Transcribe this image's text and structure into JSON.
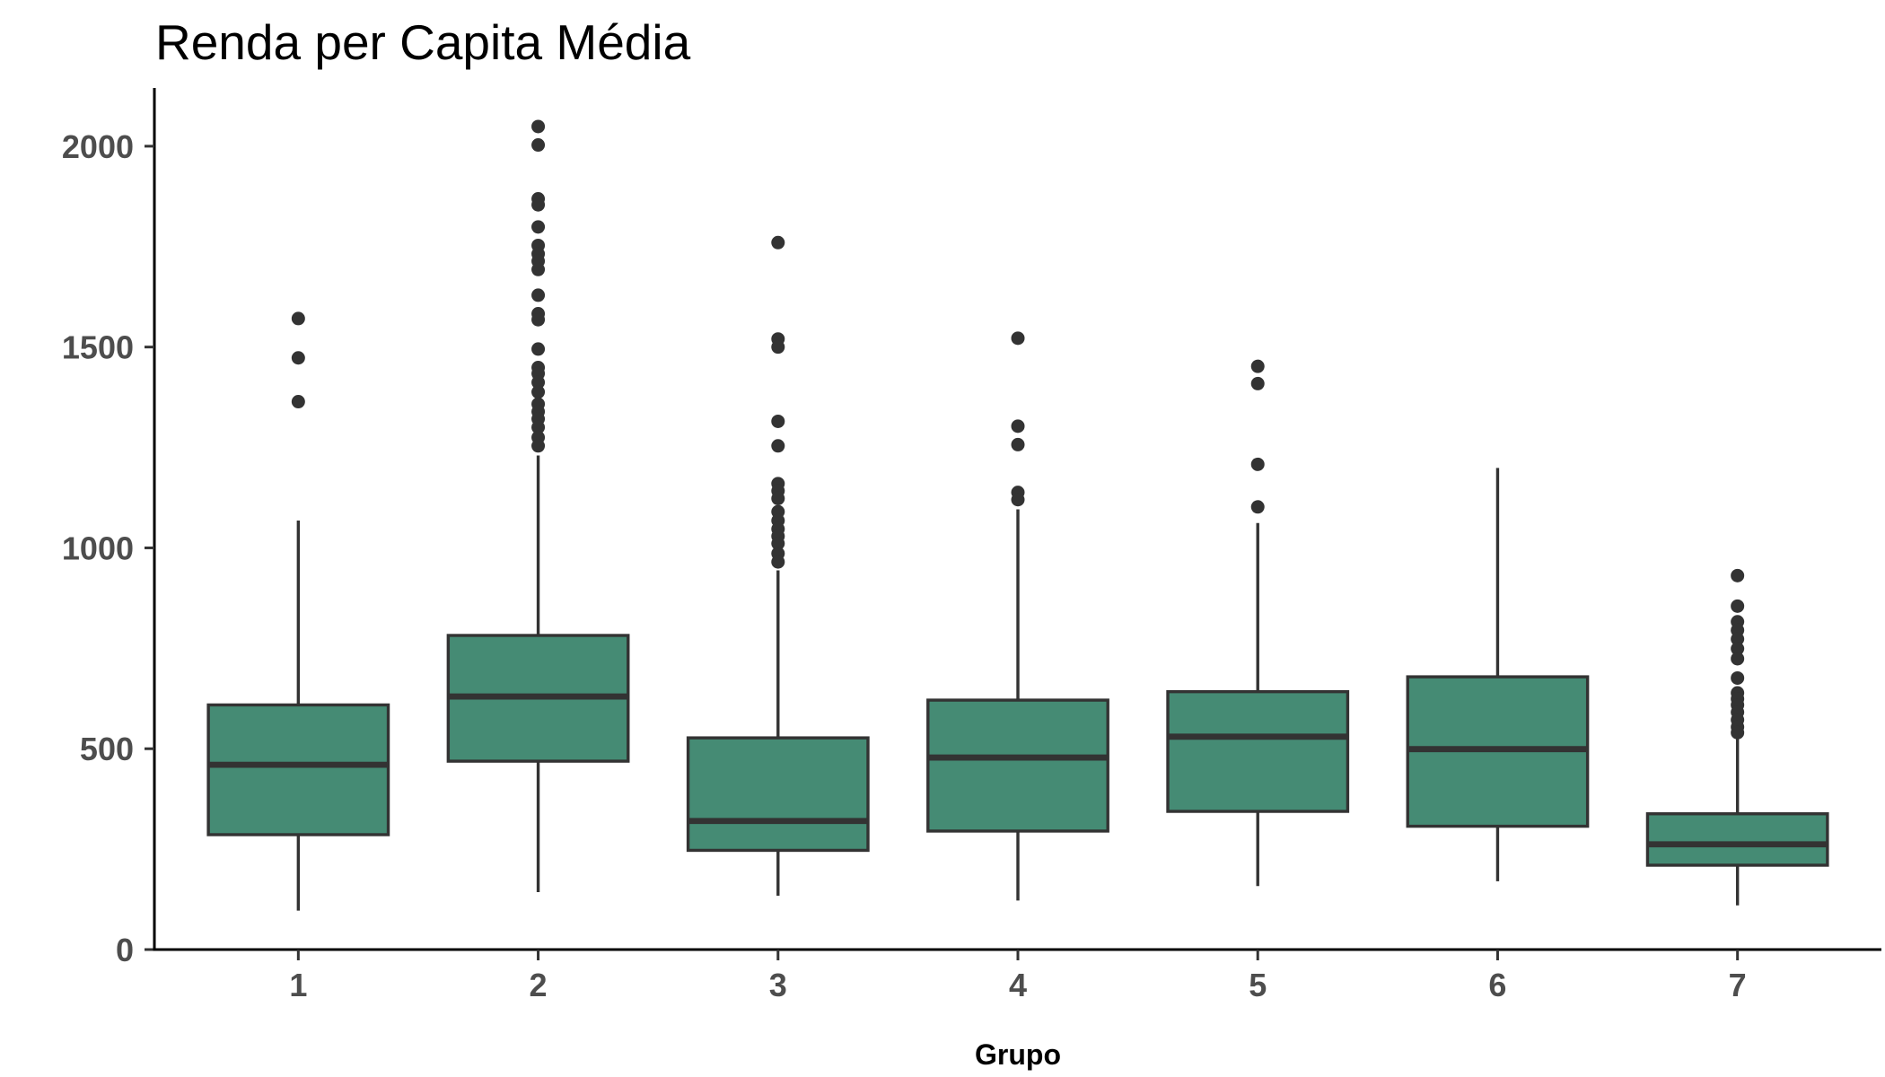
{
  "chart_data": {
    "type": "boxplot",
    "title": "Renda per Capita Média",
    "xlabel": "Grupo",
    "categories": [
      "1",
      "2",
      "3",
      "4",
      "5",
      "6",
      "7"
    ],
    "y_ticks": [
      0,
      500,
      1000,
      1500,
      2000
    ],
    "ylim": [
      0,
      2145
    ],
    "grid": false,
    "colors": {
      "box_fill": "#458B74",
      "box_line": "#333333",
      "outlier": "#333333",
      "axis_line": "#000000",
      "tick_mark": "#333333",
      "axis_text": "#4D4D4D",
      "title": "#000000"
    },
    "boxes": [
      {
        "whisker_low": 97,
        "q1": 286,
        "median": 460,
        "q3": 609,
        "whisker_high": 1068,
        "outliers": [
          1571,
          1473,
          1364
        ]
      },
      {
        "whisker_low": 143,
        "q1": 469,
        "median": 630,
        "q3": 782,
        "whisker_high": 1230,
        "outliers": [
          2049,
          2003,
          1869,
          1854,
          1799,
          1753,
          1732,
          1714,
          1693,
          1629,
          1583,
          1568,
          1495,
          1449,
          1434,
          1412,
          1388,
          1358,
          1339,
          1321,
          1300,
          1275,
          1254
        ]
      },
      {
        "whisker_low": 134,
        "q1": 247,
        "median": 320,
        "q3": 527,
        "whisker_high": 944,
        "outliers": [
          1760,
          1520,
          1500,
          1315,
          1254,
          1160,
          1142,
          1123,
          1090,
          1068,
          1047,
          1029,
          1011,
          986,
          965
        ]
      },
      {
        "whisker_low": 122,
        "q1": 295,
        "median": 478,
        "q3": 621,
        "whisker_high": 1096,
        "outliers": [
          1522,
          1303,
          1257,
          1138,
          1120
        ]
      },
      {
        "whisker_low": 158,
        "q1": 344,
        "median": 530,
        "q3": 642,
        "whisker_high": 1062,
        "outliers": [
          1452,
          1409,
          1208,
          1102
        ]
      },
      {
        "whisker_low": 170,
        "q1": 307,
        "median": 499,
        "q3": 679,
        "whisker_high": 1199,
        "outliers": []
      },
      {
        "whisker_low": 110,
        "q1": 210,
        "median": 262,
        "q3": 338,
        "whisker_high": 524,
        "outliers": [
          931,
          855,
          816,
          795,
          773,
          749,
          724,
          676,
          639,
          624,
          609,
          591,
          572,
          554,
          540
        ]
      }
    ]
  }
}
